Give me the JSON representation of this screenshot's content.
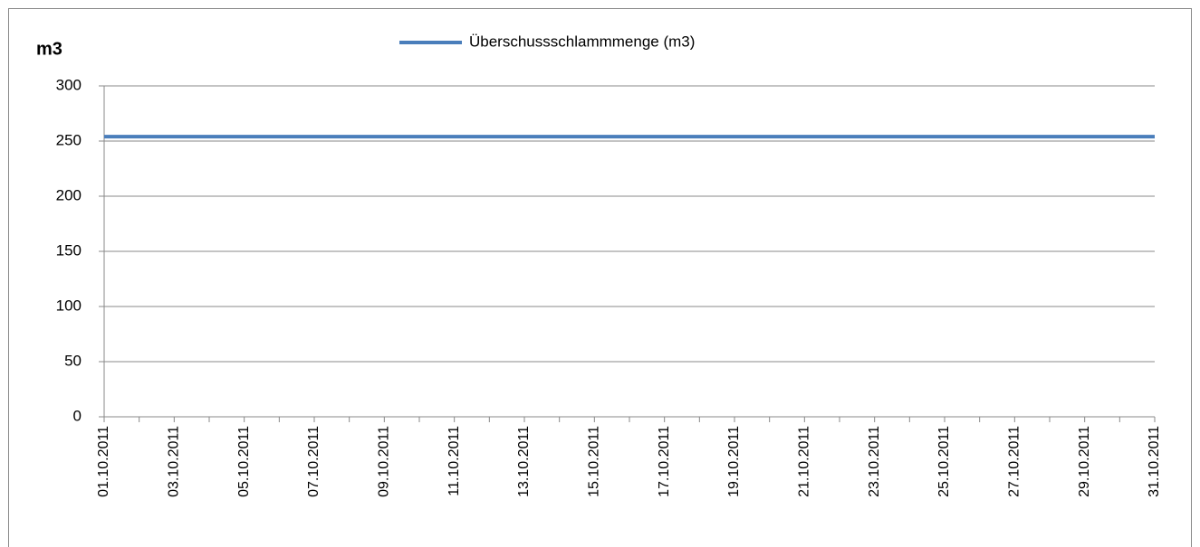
{
  "chart_data": {
    "type": "line",
    "y_axis_label": "m3",
    "categories": [
      "01.10.2011",
      null,
      "03.10.2011",
      null,
      "05.10.2011",
      null,
      "07.10.2011",
      null,
      "09.10.2011",
      null,
      "11.10.2011",
      null,
      "13.10.2011",
      null,
      "15.10.2011",
      null,
      "17.10.2011",
      null,
      "19.10.2011",
      null,
      "21.10.2011",
      null,
      "23.10.2011",
      null,
      "25.10.2011",
      null,
      "27.10.2011",
      null,
      "29.10.2011",
      null,
      "31.10.2011"
    ],
    "series": [
      {
        "name": "Überschussschlammmenge (m3)",
        "color": "#4a7ebb",
        "values": [
          254,
          254,
          254,
          254,
          254,
          254,
          254,
          254,
          254,
          254,
          254,
          254,
          254,
          254,
          254,
          254,
          254,
          254,
          254,
          254,
          254,
          254,
          254,
          254,
          254,
          254,
          254,
          254,
          254,
          254,
          254
        ]
      }
    ],
    "ylim": [
      0,
      300
    ],
    "yticks": [
      0,
      50,
      100,
      150,
      200,
      250,
      300
    ],
    "grid": true,
    "legend": "top"
  }
}
